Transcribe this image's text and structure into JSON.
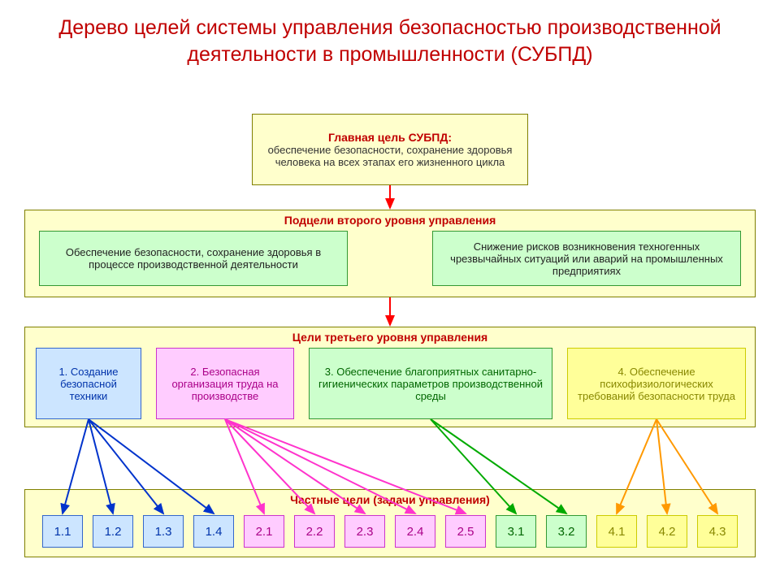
{
  "title": "Дерево целей системы управления безопасностью производственной деятельности в промышленности (СУБПД)",
  "colors": {
    "title": "#c00000",
    "yellow_bg": "#ffffcc",
    "yellow_border": "#808000",
    "green_bg": "#ccffcc",
    "green_border": "#339933",
    "blue_bg": "#cce5ff",
    "blue_border": "#3366cc",
    "pink_bg": "#ffccff",
    "pink_border": "#cc33cc",
    "yellow2_bg": "#ffff99",
    "yellow2_border": "#cccc00",
    "red": "#ff0000",
    "arrow_blue": "#0033cc",
    "arrow_pink": "#ff33cc",
    "arrow_green": "#00aa00",
    "arrow_yellow": "#ff9900"
  },
  "level1": {
    "title": "Главная цель СУБПД:",
    "text": "обеспечение безопасности, сохранение здоровья человека на всех этапах его жизненного цикла"
  },
  "level2": {
    "header": "Подцели второго уровня управления",
    "left": "Обеспечение безопасности, сохранение здоровья в процессе производственной деятельности",
    "right": "Снижение рисков возникновения техногенных чрезвычайных ситуаций или аварий на промышленных предприятиях"
  },
  "level3": {
    "header": "Цели третьего уровня управления",
    "items": [
      "1. Создание безопасной техники",
      "2. Безопасная организация труда на производстве",
      "3. Обеспечение благоприятных санитарно-гигиенических параметров производственной среды",
      "4. Обеспечение психофизиологических требований безопасности труда"
    ]
  },
  "level4": {
    "header": "Частные цели (задачи управления)",
    "groups": [
      {
        "items": [
          "1.1",
          "1.2",
          "1.3",
          "1.4"
        ],
        "color": "blue"
      },
      {
        "items": [
          "2.1",
          "2.2",
          "2.3",
          "2.4",
          "2.5"
        ],
        "color": "pink"
      },
      {
        "items": [
          "3.1",
          "3.2"
        ],
        "color": "green"
      },
      {
        "items": [
          "4.1",
          "4.2",
          "4.3"
        ],
        "color": "yellow"
      }
    ]
  },
  "typography": {
    "title_fontsize": 25,
    "box_title_fontsize": 14,
    "box_text_fontsize": 13,
    "small_box_fontsize": 15
  }
}
